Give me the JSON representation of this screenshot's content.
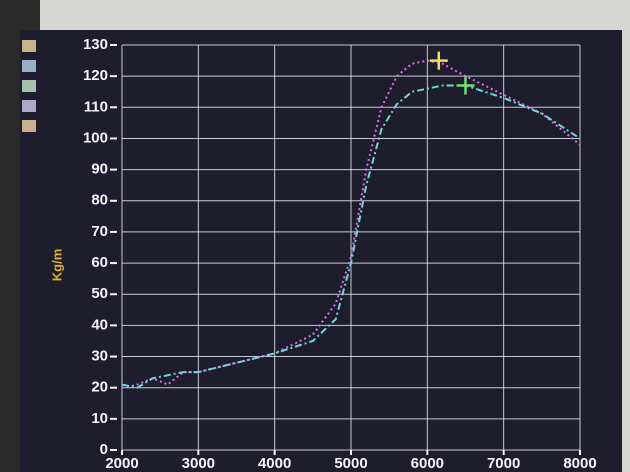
{
  "chart_data": {
    "type": "line",
    "y_label": "Kg/m",
    "x": [
      2000,
      2200,
      2400,
      2600,
      2800,
      3000,
      3500,
      4000,
      4500,
      4800,
      5000,
      5200,
      5400,
      5600,
      5800,
      6000,
      6200,
      6500,
      7000,
      7500,
      8000
    ],
    "series": [
      {
        "color": "#e070e8",
        "values": [
          20,
          21,
          23,
          21,
          25,
          25,
          28,
          31,
          37,
          47,
          62,
          90,
          110,
          120,
          124,
          125,
          124,
          120,
          114,
          108,
          98
        ]
      },
      {
        "color": "#70d8d8",
        "values": [
          21,
          20,
          23,
          24,
          25,
          25,
          28,
          31,
          35,
          42,
          60,
          85,
          103,
          111,
          115,
          116,
          117,
          117,
          113,
          108,
          100
        ]
      }
    ],
    "peaks": [
      {
        "x": 6150,
        "y": 125,
        "color": "#f0e060"
      },
      {
        "x": 6500,
        "y": 117,
        "color": "#70e070"
      }
    ],
    "xlim": [
      2000,
      8000
    ],
    "xticks": [
      2000,
      3000,
      4000,
      5000,
      6000,
      7000,
      8000
    ],
    "ylim": [
      0,
      130
    ],
    "yticks": [
      0,
      10,
      20,
      30,
      40,
      50,
      60,
      70,
      80,
      90,
      100,
      110,
      120,
      130
    ],
    "grid": true
  }
}
